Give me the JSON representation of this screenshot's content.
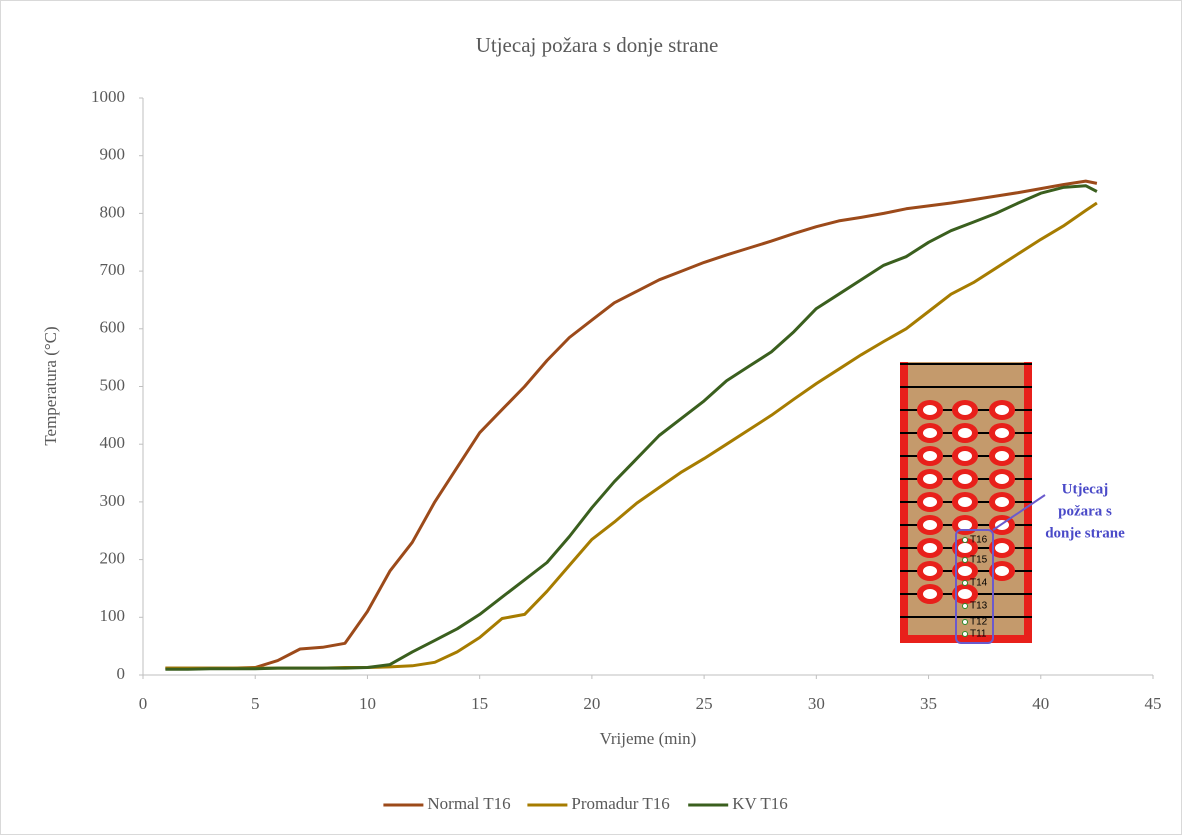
{
  "chart_data": {
    "type": "line",
    "title": "Utjecaj požara s donje strane",
    "x_label": "Vrijeme (min)",
    "y_label": "Temperatura (°C)",
    "x": [
      1,
      2,
      3,
      4,
      5,
      6,
      7,
      8,
      9,
      10,
      11,
      12,
      13,
      14,
      15,
      16,
      17,
      18,
      19,
      20,
      21,
      22,
      23,
      24,
      25,
      26,
      27,
      28,
      29,
      30,
      31,
      32,
      33,
      34,
      35,
      36,
      37,
      38,
      39,
      40,
      41,
      42,
      42.5
    ],
    "series": [
      {
        "name": "Normal T16",
        "color": "#9c4a1a",
        "values": [
          12,
          12,
          12,
          12,
          13,
          25,
          45,
          48,
          55,
          110,
          180,
          230,
          300,
          360,
          420,
          460,
          500,
          545,
          585,
          615,
          645,
          665,
          685,
          700,
          715,
          728,
          740,
          752,
          765,
          777,
          787,
          793,
          800,
          808,
          813,
          818,
          824,
          830,
          836,
          843,
          850,
          856,
          852
        ]
      },
      {
        "name": "Promadur T16",
        "color": "#a67c00",
        "values": [
          12,
          12,
          12,
          12,
          12,
          12,
          12,
          12,
          13,
          13,
          14,
          16,
          22,
          40,
          65,
          98,
          105,
          145,
          190,
          235,
          265,
          298,
          325,
          352,
          375,
          400,
          425,
          450,
          478,
          505,
          530,
          555,
          578,
          600,
          630,
          660,
          680,
          705,
          730,
          755,
          778,
          805,
          818
        ]
      },
      {
        "name": "KV T16",
        "color": "#3a5f1e",
        "values": [
          10,
          10,
          11,
          11,
          11,
          12,
          12,
          12,
          12,
          13,
          18,
          40,
          60,
          80,
          105,
          135,
          165,
          195,
          240,
          290,
          335,
          375,
          415,
          445,
          475,
          510,
          535,
          560,
          595,
          635,
          660,
          685,
          710,
          725,
          750,
          770,
          785,
          800,
          818,
          835,
          845,
          848,
          838
        ]
      }
    ],
    "xlim": [
      0,
      45
    ],
    "xticks": [
      0,
      5,
      10,
      15,
      20,
      25,
      30,
      35,
      40,
      45
    ],
    "ylim": [
      0,
      1000
    ],
    "yticks": [
      0,
      100,
      200,
      300,
      400,
      500,
      600,
      700,
      800,
      900,
      1000
    ],
    "grid": false,
    "legend": "bottom",
    "annotation_lines": [
      "Utjecaj",
      "požara s",
      "donje strane"
    ],
    "sensor_labels": [
      "T16",
      "T15",
      "T14",
      "T13",
      "T12",
      "T11"
    ]
  }
}
